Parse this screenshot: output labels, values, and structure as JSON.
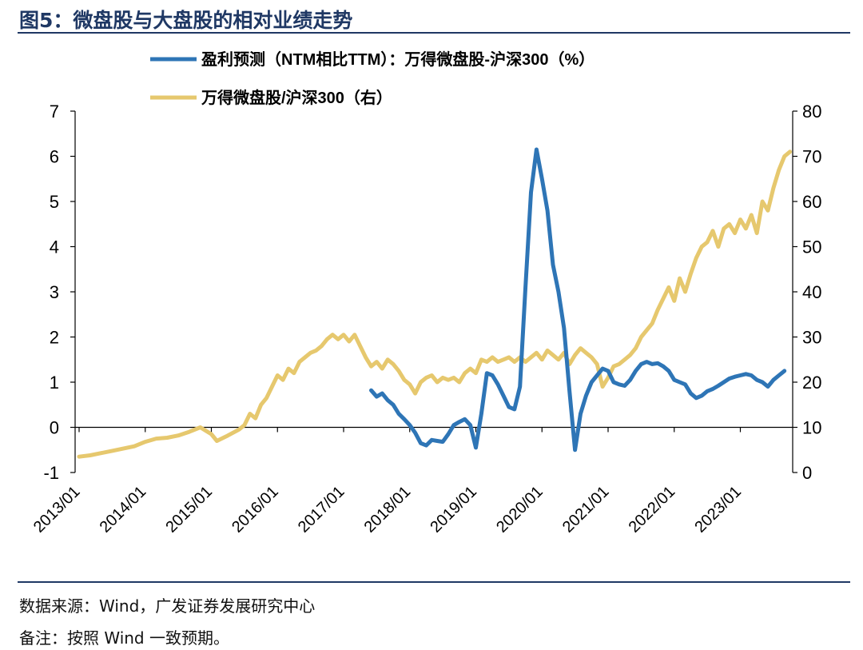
{
  "figure": {
    "title": "图5：微盘股与大盘股的相对业绩走势"
  },
  "colors": {
    "title": "#1f3864",
    "left_series": "#2e75b6",
    "right_series": "#e6c86e",
    "axis": "#000000"
  },
  "chart_data": {
    "type": "line",
    "legend_position": "top-center",
    "grid": false,
    "x_ticks": [
      "2013/01",
      "2014/01",
      "2015/01",
      "2016/01",
      "2017/01",
      "2018/01",
      "2019/01",
      "2020/01",
      "2021/01",
      "2022/01",
      "2023/01"
    ],
    "x_range": [
      "2013-01",
      "2023-10"
    ],
    "y_left": {
      "range": [
        -1,
        7
      ],
      "ticks": [
        "-1",
        "0",
        "1",
        "2",
        "3",
        "4",
        "5",
        "6",
        "7"
      ]
    },
    "y_right": {
      "range": [
        0,
        80
      ],
      "ticks": [
        "0",
        "10",
        "20",
        "30",
        "40",
        "50",
        "60",
        "70",
        "80"
      ]
    },
    "series": [
      {
        "name": "盈利预测（NTM相比TTM）：万得微盘股-沪深300（%）",
        "axis": "left",
        "color": "#2e75b6",
        "points": [
          [
            "2017-06",
            0.82
          ],
          [
            "2017-07",
            0.68
          ],
          [
            "2017-08",
            0.75
          ],
          [
            "2017-09",
            0.6
          ],
          [
            "2017-10",
            0.5
          ],
          [
            "2017-11",
            0.3
          ],
          [
            "2017-12",
            0.18
          ],
          [
            "2018-01",
            0.05
          ],
          [
            "2018-02",
            -0.12
          ],
          [
            "2018-03",
            -0.35
          ],
          [
            "2018-04",
            -0.4
          ],
          [
            "2018-05",
            -0.28
          ],
          [
            "2018-06",
            -0.3
          ],
          [
            "2018-07",
            -0.32
          ],
          [
            "2018-08",
            -0.15
          ],
          [
            "2018-09",
            0.05
          ],
          [
            "2018-10",
            0.12
          ],
          [
            "2018-11",
            0.18
          ],
          [
            "2018-12",
            0.05
          ],
          [
            "2019-01",
            -0.45
          ],
          [
            "2019-02",
            0.3
          ],
          [
            "2019-03",
            1.2
          ],
          [
            "2019-04",
            1.15
          ],
          [
            "2019-05",
            0.95
          ],
          [
            "2019-06",
            0.7
          ],
          [
            "2019-07",
            0.45
          ],
          [
            "2019-08",
            0.4
          ],
          [
            "2019-09",
            0.9
          ],
          [
            "2019-10",
            3.1
          ],
          [
            "2019-11",
            5.2
          ],
          [
            "2019-12",
            6.15
          ],
          [
            "2020-01",
            5.5
          ],
          [
            "2020-02",
            4.8
          ],
          [
            "2020-03",
            3.6
          ],
          [
            "2020-04",
            3.0
          ],
          [
            "2020-05",
            2.2
          ],
          [
            "2020-06",
            0.8
          ],
          [
            "2020-07",
            -0.5
          ],
          [
            "2020-08",
            0.3
          ],
          [
            "2020-09",
            0.7
          ],
          [
            "2020-10",
            1.0
          ],
          [
            "2020-11",
            1.15
          ],
          [
            "2020-12",
            1.3
          ],
          [
            "2021-01",
            1.25
          ],
          [
            "2021-02",
            1.0
          ],
          [
            "2021-03",
            0.95
          ],
          [
            "2021-04",
            0.92
          ],
          [
            "2021-05",
            1.05
          ],
          [
            "2021-06",
            1.25
          ],
          [
            "2021-07",
            1.4
          ],
          [
            "2021-08",
            1.45
          ],
          [
            "2021-09",
            1.4
          ],
          [
            "2021-10",
            1.42
          ],
          [
            "2021-11",
            1.35
          ],
          [
            "2021-12",
            1.25
          ],
          [
            "2022-01",
            1.05
          ],
          [
            "2022-02",
            1.0
          ],
          [
            "2022-03",
            0.95
          ],
          [
            "2022-04",
            0.75
          ],
          [
            "2022-05",
            0.65
          ],
          [
            "2022-06",
            0.7
          ],
          [
            "2022-07",
            0.8
          ],
          [
            "2022-08",
            0.85
          ],
          [
            "2022-09",
            0.92
          ],
          [
            "2022-10",
            1.0
          ],
          [
            "2022-11",
            1.08
          ],
          [
            "2022-12",
            1.12
          ],
          [
            "2023-01",
            1.15
          ],
          [
            "2023-02",
            1.18
          ],
          [
            "2023-03",
            1.15
          ],
          [
            "2023-04",
            1.05
          ],
          [
            "2023-05",
            1.0
          ],
          [
            "2023-06",
            0.9
          ],
          [
            "2023-07",
            1.05
          ],
          [
            "2023-08",
            1.15
          ],
          [
            "2023-09",
            1.25
          ]
        ]
      },
      {
        "name": "万得微盘股/沪深300（右）",
        "axis": "right",
        "color": "#e6c86e",
        "points": [
          [
            "2013-01",
            3.5
          ],
          [
            "2013-03",
            3.8
          ],
          [
            "2013-05",
            4.3
          ],
          [
            "2013-07",
            4.8
          ],
          [
            "2013-09",
            5.3
          ],
          [
            "2013-11",
            5.8
          ],
          [
            "2014-01",
            6.8
          ],
          [
            "2014-03",
            7.5
          ],
          [
            "2014-05",
            7.7
          ],
          [
            "2014-07",
            8.2
          ],
          [
            "2014-09",
            9.0
          ],
          [
            "2014-11",
            10.0
          ],
          [
            "2015-01",
            8.5
          ],
          [
            "2015-02",
            7.0
          ],
          [
            "2015-04",
            8.2
          ],
          [
            "2015-06",
            9.5
          ],
          [
            "2015-07",
            10.5
          ],
          [
            "2015-08",
            13.0
          ],
          [
            "2015-09",
            12.0
          ],
          [
            "2015-10",
            15.0
          ],
          [
            "2015-11",
            16.5
          ],
          [
            "2015-12",
            19.0
          ],
          [
            "2016-01",
            21.5
          ],
          [
            "2016-02",
            20.5
          ],
          [
            "2016-03",
            23.0
          ],
          [
            "2016-04",
            22.0
          ],
          [
            "2016-05",
            24.5
          ],
          [
            "2016-06",
            25.5
          ],
          [
            "2016-07",
            26.5
          ],
          [
            "2016-08",
            27.0
          ],
          [
            "2016-09",
            28.0
          ],
          [
            "2016-10",
            29.5
          ],
          [
            "2016-11",
            30.5
          ],
          [
            "2016-12",
            29.5
          ],
          [
            "2017-01",
            30.5
          ],
          [
            "2017-02",
            29.0
          ],
          [
            "2017-03",
            30.5
          ],
          [
            "2017-04",
            28.0
          ],
          [
            "2017-05",
            25.5
          ],
          [
            "2017-06",
            23.5
          ],
          [
            "2017-07",
            24.5
          ],
          [
            "2017-08",
            23.0
          ],
          [
            "2017-09",
            25.0
          ],
          [
            "2017-10",
            24.0
          ],
          [
            "2017-11",
            22.5
          ],
          [
            "2017-12",
            20.5
          ],
          [
            "2018-01",
            19.5
          ],
          [
            "2018-02",
            17.5
          ],
          [
            "2018-03",
            20.0
          ],
          [
            "2018-04",
            21.0
          ],
          [
            "2018-05",
            21.5
          ],
          [
            "2018-06",
            20.0
          ],
          [
            "2018-07",
            21.0
          ],
          [
            "2018-08",
            20.5
          ],
          [
            "2018-09",
            21.0
          ],
          [
            "2018-10",
            20.0
          ],
          [
            "2018-11",
            22.0
          ],
          [
            "2018-12",
            23.0
          ],
          [
            "2019-01",
            22.0
          ],
          [
            "2019-02",
            25.0
          ],
          [
            "2019-03",
            24.5
          ],
          [
            "2019-04",
            25.5
          ],
          [
            "2019-05",
            24.5
          ],
          [
            "2019-06",
            25.0
          ],
          [
            "2019-07",
            25.5
          ],
          [
            "2019-08",
            24.5
          ],
          [
            "2019-09",
            25.5
          ],
          [
            "2019-10",
            24.5
          ],
          [
            "2019-11",
            25.5
          ],
          [
            "2019-12",
            26.5
          ],
          [
            "2020-01",
            25.0
          ],
          [
            "2020-02",
            27.0
          ],
          [
            "2020-03",
            26.0
          ],
          [
            "2020-04",
            25.0
          ],
          [
            "2020-05",
            26.5
          ],
          [
            "2020-06",
            24.0
          ],
          [
            "2020-07",
            26.0
          ],
          [
            "2020-08",
            27.5
          ],
          [
            "2020-09",
            26.5
          ],
          [
            "2020-10",
            25.5
          ],
          [
            "2020-11",
            24.0
          ],
          [
            "2020-12",
            19.0
          ],
          [
            "2021-01",
            21.0
          ],
          [
            "2021-02",
            23.5
          ],
          [
            "2021-03",
            24.0
          ],
          [
            "2021-04",
            25.0
          ],
          [
            "2021-05",
            26.0
          ],
          [
            "2021-06",
            27.5
          ],
          [
            "2021-07",
            30.0
          ],
          [
            "2021-08",
            31.5
          ],
          [
            "2021-09",
            33.0
          ],
          [
            "2021-10",
            36.0
          ],
          [
            "2021-11",
            38.5
          ],
          [
            "2021-12",
            41.0
          ],
          [
            "2022-01",
            38.0
          ],
          [
            "2022-02",
            43.0
          ],
          [
            "2022-03",
            40.0
          ],
          [
            "2022-04",
            44.0
          ],
          [
            "2022-05",
            47.5
          ],
          [
            "2022-06",
            50.0
          ],
          [
            "2022-07",
            51.0
          ],
          [
            "2022-08",
            53.5
          ],
          [
            "2022-09",
            50.0
          ],
          [
            "2022-10",
            54.0
          ],
          [
            "2022-11",
            55.0
          ],
          [
            "2022-12",
            53.0
          ],
          [
            "2023-01",
            56.0
          ],
          [
            "2023-02",
            54.0
          ],
          [
            "2023-03",
            57.0
          ],
          [
            "2023-04",
            53.0
          ],
          [
            "2023-05",
            60.0
          ],
          [
            "2023-06",
            58.0
          ],
          [
            "2023-07",
            63.0
          ],
          [
            "2023-08",
            67.0
          ],
          [
            "2023-09",
            70.0
          ],
          [
            "2023-10",
            71.0
          ]
        ]
      }
    ]
  },
  "footer": {
    "source": "数据来源：Wind，广发证券发展研究中心",
    "note": "备注：按照 Wind 一致预期。"
  }
}
